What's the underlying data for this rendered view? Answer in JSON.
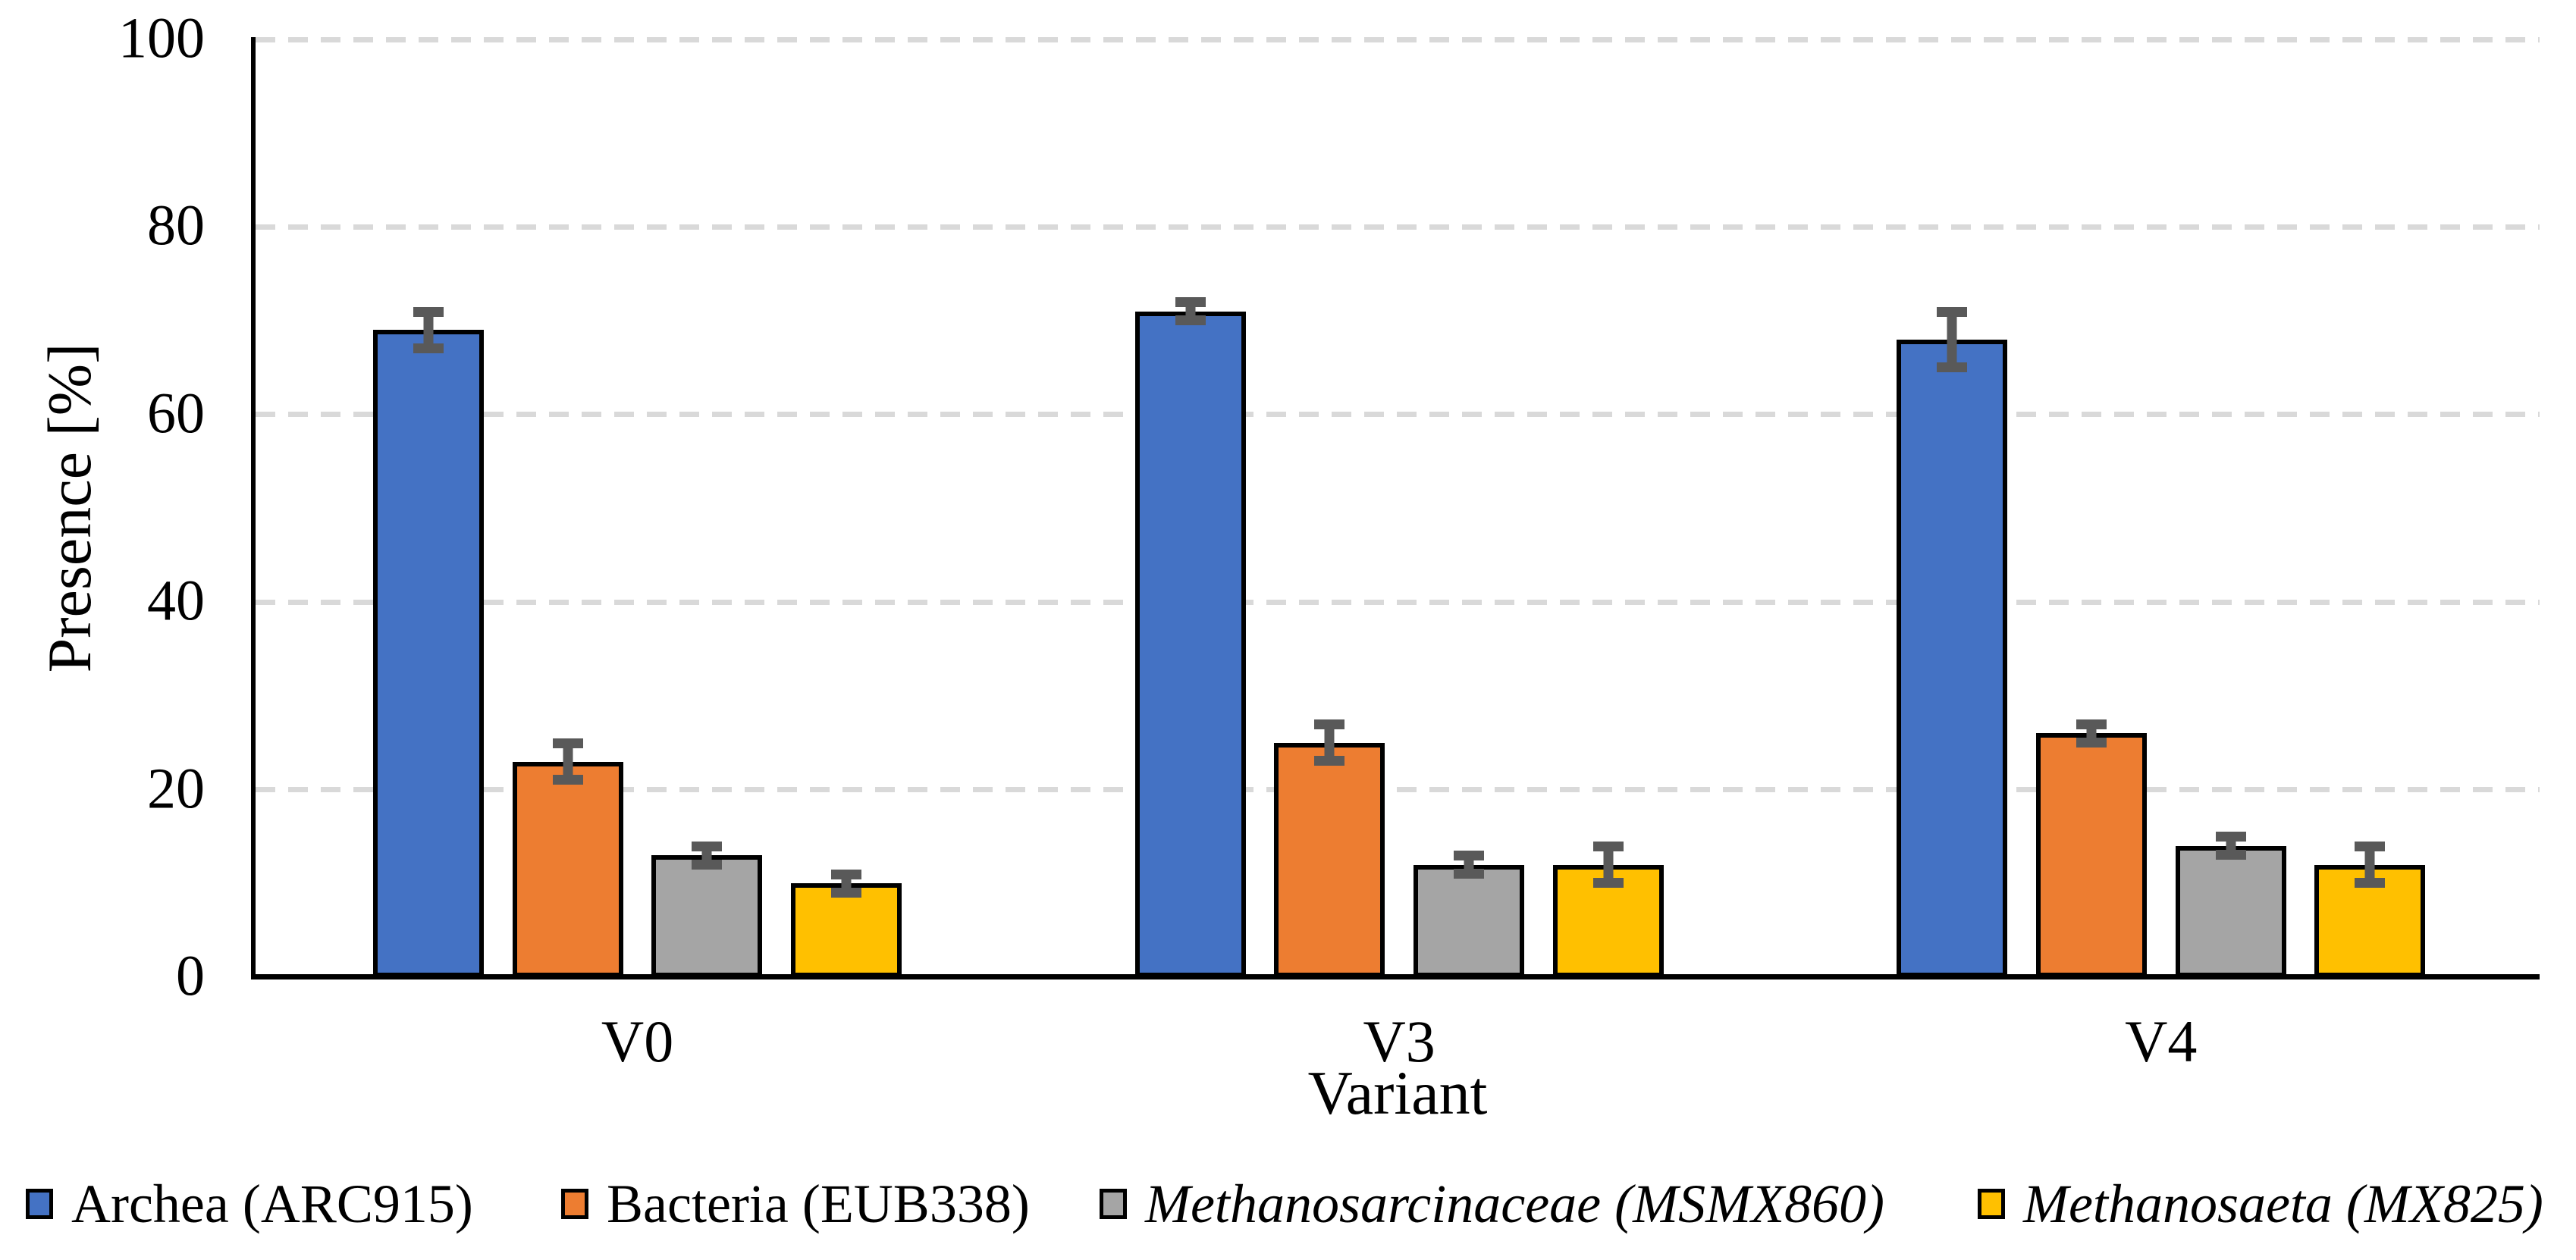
{
  "chart_data": {
    "type": "bar",
    "title": "",
    "xlabel": "Variant",
    "ylabel": "Presence [%]",
    "ylim": [
      0,
      100
    ],
    "yticks": [
      0,
      20,
      40,
      60,
      80,
      100
    ],
    "grid": "horizontal-dashed",
    "gridline_color": "#D9D9D9",
    "axis_color": "#000000",
    "error_bar_color": "#595959",
    "legend_position": "bottom",
    "categories": [
      "V0",
      "V3",
      "V4"
    ],
    "series": [
      {
        "name": "Archea (ARC915)",
        "color": "#4472C4",
        "italic": false,
        "values": [
          69,
          71,
          68
        ],
        "errors": [
          2,
          1,
          3
        ]
      },
      {
        "name": "Bacteria (EUB338)",
        "color": "#ED7D31",
        "italic": false,
        "values": [
          23,
          25,
          26
        ],
        "errors": [
          2,
          2,
          1
        ]
      },
      {
        "name": "Methanosarcinaceae (MSMX860)",
        "color": "#A5A5A5",
        "italic": true,
        "values": [
          13,
          12,
          14
        ],
        "errors": [
          1,
          1,
          1
        ]
      },
      {
        "name": "Methanosaeta (MX825)",
        "color": "#FFC000",
        "italic": true,
        "values": [
          10,
          12,
          12
        ],
        "errors": [
          1,
          2,
          2
        ]
      }
    ]
  }
}
